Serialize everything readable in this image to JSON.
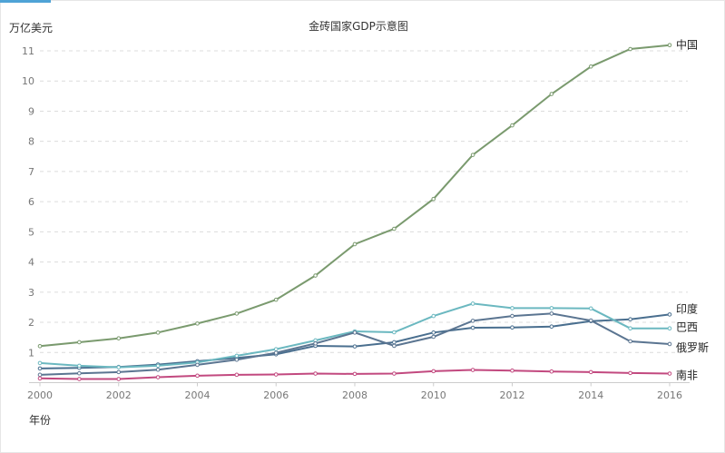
{
  "chart_data": {
    "type": "line",
    "title": "金砖国家GDP示意图",
    "ylabel": "万亿美元",
    "xlabel": "年份",
    "ylim": [
      0,
      11.5
    ],
    "yticks": [
      1,
      2,
      3,
      4,
      5,
      6,
      7,
      8,
      9,
      10,
      11
    ],
    "xlim": [
      2000,
      2016
    ],
    "xticks": [
      2000,
      2002,
      2004,
      2006,
      2008,
      2010,
      2012,
      2014,
      2016
    ],
    "grid": true,
    "x": [
      2000,
      2001,
      2002,
      2003,
      2004,
      2005,
      2006,
      2007,
      2008,
      2009,
      2010,
      2011,
      2012,
      2013,
      2014,
      2015,
      2016
    ],
    "series": [
      {
        "name": "中国",
        "color": "#7a9a6e",
        "values": [
          1.21,
          1.34,
          1.47,
          1.66,
          1.96,
          2.29,
          2.75,
          3.55,
          4.59,
          5.1,
          6.09,
          7.55,
          8.53,
          9.57,
          10.48,
          11.06,
          11.19
        ]
      },
      {
        "name": "印度",
        "color": "#4a6f8f",
        "values": [
          0.47,
          0.49,
          0.52,
          0.6,
          0.71,
          0.82,
          0.94,
          1.22,
          1.2,
          1.34,
          1.66,
          1.82,
          1.83,
          1.86,
          2.04,
          2.1,
          2.26
        ]
      },
      {
        "name": "巴西",
        "color": "#6bb8c0",
        "values": [
          0.65,
          0.56,
          0.51,
          0.56,
          0.67,
          0.89,
          1.11,
          1.4,
          1.7,
          1.67,
          2.21,
          2.62,
          2.47,
          2.47,
          2.46,
          1.8,
          1.8
        ]
      },
      {
        "name": "俄罗斯",
        "color": "#5b7591",
        "values": [
          0.26,
          0.31,
          0.35,
          0.43,
          0.59,
          0.76,
          0.99,
          1.3,
          1.66,
          1.22,
          1.52,
          2.05,
          2.21,
          2.29,
          2.06,
          1.37,
          1.28
        ]
      },
      {
        "name": "南非",
        "color": "#c2497f",
        "values": [
          0.14,
          0.12,
          0.12,
          0.18,
          0.23,
          0.26,
          0.27,
          0.3,
          0.29,
          0.3,
          0.38,
          0.42,
          0.4,
          0.37,
          0.35,
          0.32,
          0.3
        ]
      }
    ]
  }
}
